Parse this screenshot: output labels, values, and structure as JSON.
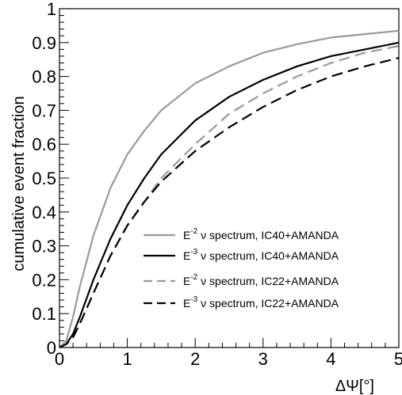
{
  "chart_data": {
    "type": "line",
    "title": "",
    "xlabel": "ΔΨ[°]",
    "ylabel": "cumulative event fraction",
    "xlim": [
      0,
      5
    ],
    "ylim": [
      0,
      1
    ],
    "x_ticks": [
      "0",
      "1",
      "2",
      "3",
      "4",
      "5"
    ],
    "y_ticks": [
      "0",
      "0.1",
      "0.2",
      "0.3",
      "0.4",
      "0.5",
      "0.6",
      "0.7",
      "0.8",
      "0.9",
      "1"
    ],
    "grid": false,
    "legend_position": "lower-right",
    "series": [
      {
        "name": "E-2 ν spectrum, IC40+AMANDA",
        "legend": {
          "base": "E",
          "sup": "-2",
          "rest": " ν spectrum, IC40+AMANDA"
        },
        "color": "#999999",
        "dash": "solid",
        "x": [
          0,
          0.1,
          0.2,
          0.3,
          0.5,
          0.75,
          1.0,
          1.25,
          1.5,
          2.0,
          2.5,
          3.0,
          3.5,
          4.0,
          4.5,
          5.0
        ],
        "y": [
          0,
          0.02,
          0.09,
          0.18,
          0.33,
          0.47,
          0.57,
          0.64,
          0.7,
          0.78,
          0.83,
          0.87,
          0.895,
          0.915,
          0.925,
          0.935
        ]
      },
      {
        "name": "E-3 ν spectrum, IC40+AMANDA",
        "legend": {
          "base": "E",
          "sup": "-3",
          "rest": " ν spectrum, IC40+AMANDA"
        },
        "color": "#000000",
        "dash": "solid",
        "x": [
          0,
          0.1,
          0.2,
          0.3,
          0.5,
          0.75,
          1.0,
          1.25,
          1.5,
          2.0,
          2.5,
          3.0,
          3.5,
          4.0,
          4.5,
          5.0
        ],
        "y": [
          0,
          0.01,
          0.04,
          0.09,
          0.2,
          0.32,
          0.42,
          0.5,
          0.57,
          0.67,
          0.74,
          0.79,
          0.83,
          0.86,
          0.88,
          0.9
        ]
      },
      {
        "name": "E-2 ν spectrum, IC22+AMANDA",
        "legend": {
          "base": "E",
          "sup": "-2",
          "rest": " ν spectrum, IC22+AMANDA"
        },
        "color": "#999999",
        "dash": "dashed",
        "x": [
          0,
          0.1,
          0.2,
          0.3,
          0.5,
          0.75,
          1.0,
          1.25,
          1.5,
          2.0,
          2.5,
          3.0,
          3.5,
          4.0,
          4.5,
          5.0
        ],
        "y": [
          0,
          0.01,
          0.03,
          0.07,
          0.16,
          0.27,
          0.36,
          0.43,
          0.5,
          0.6,
          0.69,
          0.75,
          0.8,
          0.84,
          0.87,
          0.89
        ]
      },
      {
        "name": "E-3 ν spectrum, IC22+AMANDA",
        "legend": {
          "base": "E",
          "sup": "-3",
          "rest": " ν spectrum, IC22+AMANDA"
        },
        "color": "#000000",
        "dash": "dashed",
        "x": [
          0,
          0.1,
          0.2,
          0.3,
          0.5,
          0.75,
          1.0,
          1.25,
          1.5,
          2.0,
          2.5,
          3.0,
          3.5,
          4.0,
          4.5,
          5.0
        ],
        "y": [
          0,
          0.01,
          0.03,
          0.07,
          0.16,
          0.27,
          0.36,
          0.43,
          0.49,
          0.58,
          0.65,
          0.71,
          0.76,
          0.8,
          0.83,
          0.855
        ]
      }
    ]
  }
}
